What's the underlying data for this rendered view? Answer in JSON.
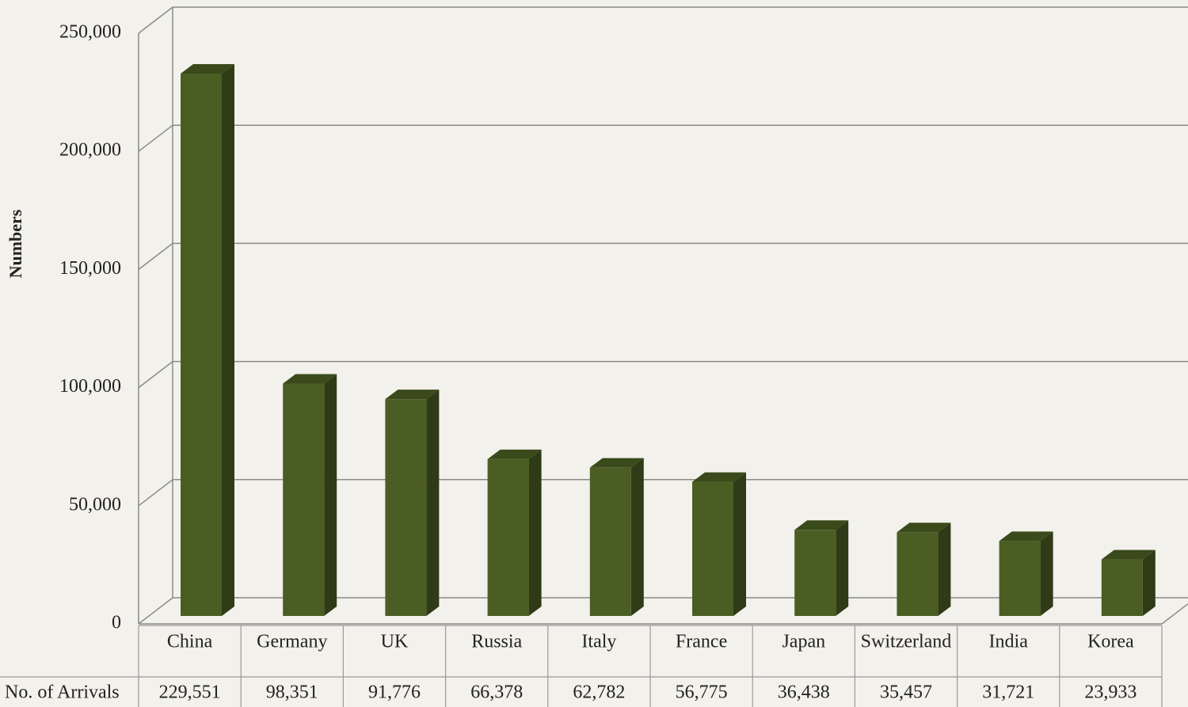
{
  "chart_data": {
    "type": "bar3d",
    "y_label": "Numbers",
    "categories": [
      "China",
      "Germany",
      "UK",
      "Russia",
      "Italy",
      "France",
      "Japan",
      "Switzerland",
      "India",
      "Korea"
    ],
    "series": [
      {
        "name": "No. of Arrivals",
        "color": "#4a5e23",
        "values": [
          229551,
          98351,
          91776,
          66378,
          62782,
          56775,
          36438,
          35457,
          31721,
          23933
        ],
        "value_labels": [
          "229,551",
          "98,351",
          "91,776",
          "66,378",
          "62,782",
          "56,775",
          "36,438",
          "35,457",
          "31,721",
          "23,933"
        ]
      }
    ],
    "ylim": [
      0,
      250000
    ],
    "yticks": [
      0,
      {
        "value": 50000,
        "label": "50,000"
      },
      {
        "value": 100000,
        "label": "100,000"
      },
      {
        "value": 150000,
        "label": "150,000"
      },
      {
        "value": 200000,
        "label": "200,000"
      },
      {
        "value": 250000,
        "label": "250,000"
      }
    ],
    "grid": true
  }
}
